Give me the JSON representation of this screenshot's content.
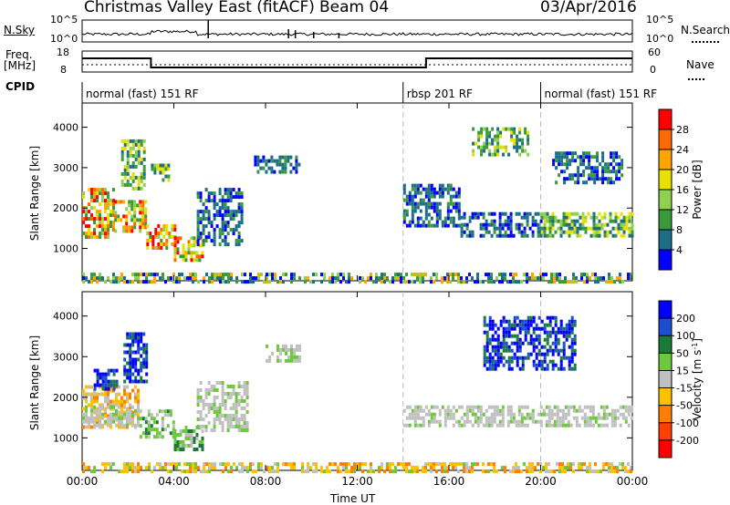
{
  "header": {
    "site": "Christmas Valley East (fitACF)",
    "beam": "Beam 04",
    "date": "03/Apr/2016"
  },
  "side_labels": {
    "nsky": "N.Sky",
    "nsky_hi": "10^5",
    "nsky_lo": "10^0",
    "freq_top": "Freq.",
    "freq_unit": "[MHz]",
    "freq_hi": "18",
    "freq_lo": "8",
    "cpid": "CPID",
    "nsearch": "N.Search",
    "nsearch_hi": "10^5",
    "nsearch_lo": "10^0",
    "nave": "Nave",
    "nave_hi": "60",
    "nave_lo": "0"
  },
  "cpid_segments": [
    {
      "label": "normal (fast) 151 RF",
      "start_h": 0,
      "end_h": 14
    },
    {
      "label": "rbsp 201 RF",
      "start_h": 14,
      "end_h": 20
    },
    {
      "label": "normal (fast) 151 RF",
      "start_h": 20,
      "end_h": 24
    }
  ],
  "colorbars": {
    "power": {
      "label": "Power [dB]",
      "ticks": [
        "28",
        "24",
        "20",
        "16",
        "12",
        "8",
        "4"
      ],
      "colors": [
        "#ff0000",
        "#ff6a00",
        "#ffa500",
        "#e8e000",
        "#8fd14f",
        "#3a9a3a",
        "#1c6e86",
        "#0000ff"
      ]
    },
    "velocity": {
      "label": "Velocity [m s",
      "label_sup": "-1",
      "label_end": "]",
      "ticks": [
        "200",
        "100",
        "50",
        "15",
        "-15",
        "-50",
        "-100",
        "-200"
      ],
      "colors": [
        "#0000ff",
        "#1a4fd0",
        "#1b7a3a",
        "#6cc83c",
        "#c0c0c0",
        "#ffc000",
        "#ff8000",
        "#ff4000",
        "#ff0000"
      ]
    }
  },
  "chart_data": [
    {
      "type": "heatmap",
      "name": "power",
      "ylabel": "Slant Range [km]",
      "xlabel": "",
      "xlim_h": [
        0,
        24
      ],
      "ylim_km": [
        200,
        4600
      ],
      "yticks": [
        "1000",
        "2000",
        "3000",
        "4000"
      ],
      "xticks": [
        "00:00",
        "04:00",
        "08:00",
        "12:00",
        "16:00",
        "20:00",
        "00:00"
      ],
      "colorbar_range_db": [
        0,
        32
      ],
      "patches": [
        {
          "t0": 0.0,
          "t1": 1.4,
          "r0": 1300,
          "r1": 2500,
          "level": "high"
        },
        {
          "t0": 1.4,
          "t1": 2.8,
          "r0": 1400,
          "r1": 2200,
          "level": "high"
        },
        {
          "t0": 2.8,
          "t1": 4.0,
          "r0": 1000,
          "r1": 1600,
          "level": "high"
        },
        {
          "t0": 4.0,
          "t1": 5.3,
          "r0": 700,
          "r1": 1300,
          "level": "high"
        },
        {
          "t0": 1.7,
          "t1": 2.7,
          "r0": 2500,
          "r1": 3700,
          "level": "mid"
        },
        {
          "t0": 3.0,
          "t1": 3.8,
          "r0": 2700,
          "r1": 3100,
          "level": "mid"
        },
        {
          "t0": 5.0,
          "t1": 7.0,
          "r0": 1100,
          "r1": 2500,
          "level": "low"
        },
        {
          "t0": 7.5,
          "t1": 9.5,
          "r0": 2900,
          "r1": 3300,
          "level": "low"
        },
        {
          "t0": 14.0,
          "t1": 16.5,
          "r0": 1600,
          "r1": 2600,
          "level": "low"
        },
        {
          "t0": 16.5,
          "t1": 20.0,
          "r0": 1300,
          "r1": 1900,
          "level": "low"
        },
        {
          "t0": 17.0,
          "t1": 19.5,
          "r0": 3300,
          "r1": 4000,
          "level": "mid"
        },
        {
          "t0": 20.0,
          "t1": 24.0,
          "r0": 1300,
          "r1": 1900,
          "level": "mid"
        },
        {
          "t0": 20.5,
          "t1": 23.5,
          "r0": 2600,
          "r1": 3400,
          "level": "low"
        },
        {
          "t0": 0.0,
          "t1": 24.0,
          "r0": 200,
          "r1": 400,
          "level": "ground"
        }
      ]
    },
    {
      "type": "heatmap",
      "name": "velocity",
      "ylabel": "Slant Range [km]",
      "xlabel": "Time UT",
      "xlim_h": [
        0,
        24
      ],
      "ylim_km": [
        200,
        4600
      ],
      "yticks": [
        "1000",
        "2000",
        "3000",
        "4000"
      ],
      "xticks": [
        "00:00",
        "04:00",
        "08:00",
        "12:00",
        "16:00",
        "20:00",
        "00:00"
      ],
      "colorbar_range_ms": [
        -250,
        250
      ],
      "patches": [
        {
          "t0": 0.0,
          "t1": 2.5,
          "r0": 1300,
          "r1": 2300,
          "kind": "orange"
        },
        {
          "t0": 0.0,
          "t1": 2.5,
          "r0": 1300,
          "r1": 1800,
          "kind": "grey"
        },
        {
          "t0": 2.5,
          "t1": 4.0,
          "r0": 1000,
          "r1": 1700,
          "kind": "green"
        },
        {
          "t0": 4.0,
          "t1": 5.3,
          "r0": 700,
          "r1": 1300,
          "kind": "green"
        },
        {
          "t0": 1.8,
          "t1": 2.8,
          "r0": 2400,
          "r1": 3600,
          "kind": "blue"
        },
        {
          "t0": 0.5,
          "t1": 1.5,
          "r0": 2200,
          "r1": 2700,
          "kind": "blue"
        },
        {
          "t0": 5.0,
          "t1": 7.2,
          "r0": 1200,
          "r1": 2400,
          "kind": "grey"
        },
        {
          "t0": 8.0,
          "t1": 9.5,
          "r0": 2900,
          "r1": 3300,
          "kind": "grey"
        },
        {
          "t0": 14.0,
          "t1": 24.0,
          "r0": 1300,
          "r1": 1800,
          "kind": "grey"
        },
        {
          "t0": 17.5,
          "t1": 21.5,
          "r0": 2700,
          "r1": 4000,
          "kind": "blue"
        },
        {
          "t0": 0.0,
          "t1": 24.0,
          "r0": 200,
          "r1": 400,
          "kind": "ground"
        }
      ]
    }
  ],
  "axis_labels": {
    "slant_range": "Slant Range [km]",
    "time": "Time UT"
  }
}
